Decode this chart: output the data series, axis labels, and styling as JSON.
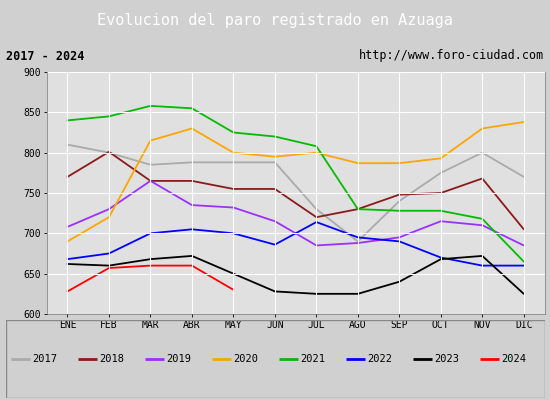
{
  "title": "Evolucion del paro registrado en Azuaga",
  "subtitle_left": "2017 - 2024",
  "subtitle_right": "http://www.foro-ciudad.com",
  "x_labels": [
    "ENE",
    "FEB",
    "MAR",
    "ABR",
    "MAY",
    "JUN",
    "JUL",
    "AGO",
    "SEP",
    "OCT",
    "NOV",
    "DIC"
  ],
  "ylim": [
    600,
    900
  ],
  "yticks": [
    600,
    650,
    700,
    750,
    800,
    850,
    900
  ],
  "series": {
    "2017": {
      "color": "#aaaaaa",
      "values": [
        810,
        800,
        785,
        788,
        788,
        788,
        730,
        690,
        740,
        775,
        800,
        770
      ]
    },
    "2018": {
      "color": "#8b1a1a",
      "values": [
        770,
        801,
        765,
        765,
        755,
        755,
        720,
        730,
        748,
        750,
        768,
        705
      ]
    },
    "2019": {
      "color": "#9b30ff",
      "values": [
        708,
        730,
        765,
        735,
        732,
        715,
        685,
        688,
        695,
        715,
        710,
        685
      ]
    },
    "2020": {
      "color": "#ffa500",
      "values": [
        690,
        720,
        815,
        830,
        800,
        795,
        800,
        787,
        787,
        793,
        830,
        838
      ]
    },
    "2021": {
      "color": "#00bb00",
      "values": [
        840,
        845,
        858,
        855,
        825,
        820,
        808,
        730,
        728,
        728,
        718,
        665
      ]
    },
    "2022": {
      "color": "#0000ff",
      "values": [
        668,
        675,
        700,
        705,
        700,
        686,
        714,
        695,
        690,
        670,
        660,
        660
      ]
    },
    "2023": {
      "color": "#000000",
      "values": [
        662,
        660,
        668,
        672,
        650,
        628,
        625,
        625,
        640,
        668,
        672,
        625
      ]
    },
    "2024": {
      "color": "#ff0000",
      "values": [
        628,
        657,
        660,
        660,
        630,
        null,
        null,
        null,
        null,
        null,
        null,
        null
      ]
    }
  },
  "background_color": "#d0d0d0",
  "plot_bg": "#e0e0e0",
  "title_bg": "#5b8dd9",
  "title_color": "#ffffff",
  "subtitle_bg": "#c8c8c8",
  "subtitle_color": "#000000",
  "legend_bg": "#f0f0f0",
  "grid_color": "#ffffff"
}
